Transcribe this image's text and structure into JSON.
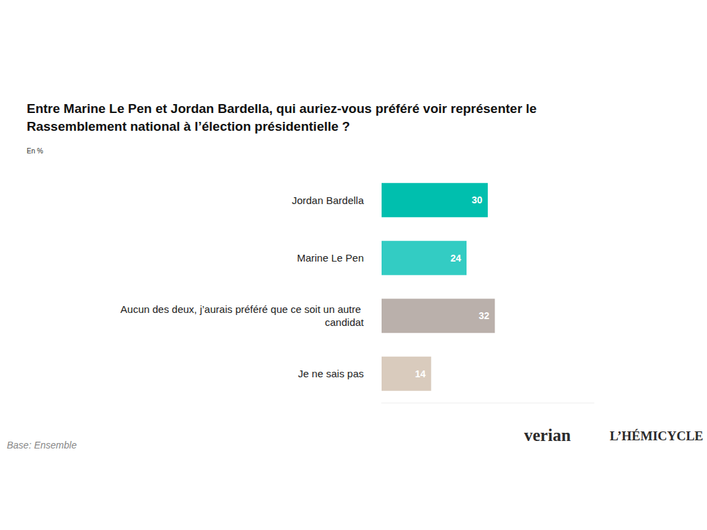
{
  "chart_data": {
    "type": "bar",
    "title": "Entre Marine Le Pen et Jordan Bardella, qui auriez-vous préféré voir représenter le Rassemblement national à l’élection présidentielle ?",
    "subtitle": "En %",
    "categories": [
      "Jordan Bardella",
      "Marine Le Pen",
      "Aucun des deux, j’aurais préféré que ce soit un autre candidat",
      "Je ne sais pas"
    ],
    "values": [
      30,
      24,
      32,
      14
    ],
    "colors": [
      "#00bfae",
      "#33ccc3",
      "#bab0ab",
      "#d9cbbd"
    ],
    "orientation": "horizontal",
    "data_labels": true,
    "tick_labels": "y",
    "grid": false,
    "xlim": [
      0,
      60
    ],
    "annotations": [
      "Base: Ensemble",
      "verian",
      "L’HÉMICYCLE"
    ]
  }
}
